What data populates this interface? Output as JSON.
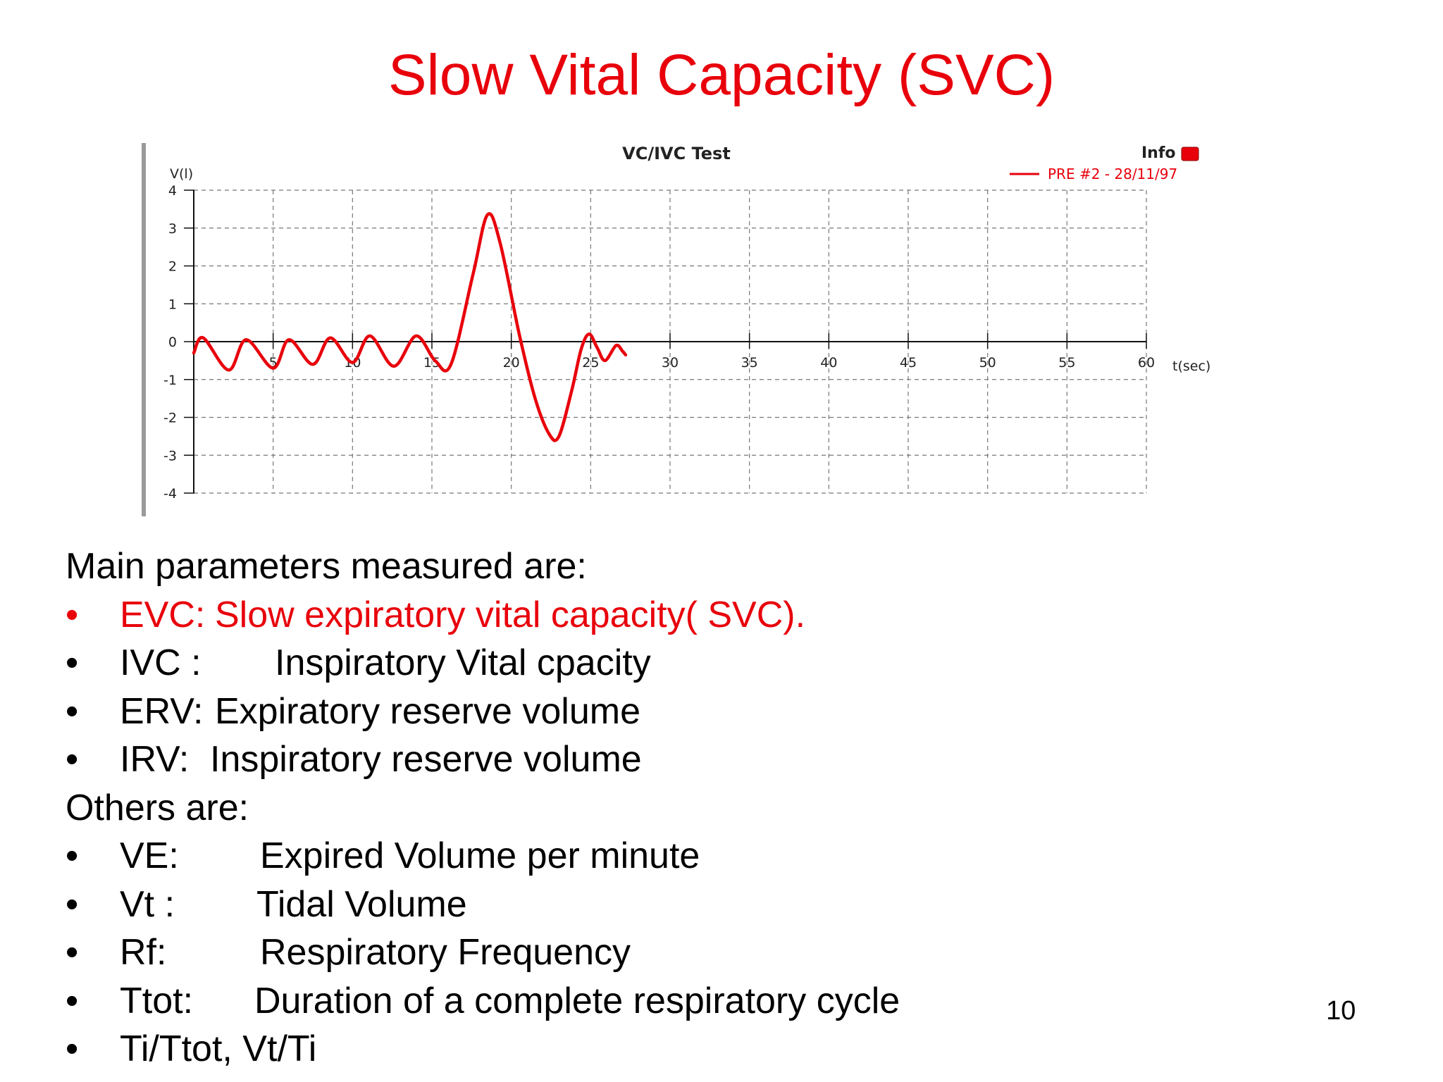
{
  "slide": {
    "title": "Slow Vital Capacity (SVC)",
    "page_number": "10",
    "accent_color": "#e8000b",
    "main_heading": "Main parameters  measured are:",
    "main_items": [
      {
        "term": "EVC:",
        "desc": "Slow expiratory vital capacity( SVC).",
        "highlight": true
      },
      {
        "term": "IVC :",
        "desc": "Inspiratory Vital cpacity",
        "highlight": false
      },
      {
        "term": "ERV:",
        "desc": "Expiratory reserve volume",
        "highlight": false
      },
      {
        "term": "IRV:",
        "desc": "Inspiratory reserve volume",
        "highlight": false
      }
    ],
    "others_heading": "Others are:",
    "other_items": [
      {
        "term": "VE:",
        "desc": "Expired Volume per minute"
      },
      {
        "term": "Vt :",
        "desc": "Tidal Volume"
      },
      {
        "term": "Rf:",
        "desc": "Respiratory Frequency"
      },
      {
        "term": "Ttot:",
        "desc": "Duration of a complete respiratory cycle"
      },
      {
        "term": "Ti/Ttot, Vt/Ti",
        "desc": ""
      }
    ],
    "bullet_char": "•"
  },
  "chart_data": {
    "type": "line",
    "title": "VC/IVC Test",
    "ylabel": "V(l)",
    "xlabel": "t(sec)",
    "info_label": "Info",
    "xlim": [
      0,
      60
    ],
    "ylim": [
      -4,
      4
    ],
    "x_ticks": [
      5,
      10,
      15,
      20,
      25,
      30,
      35,
      40,
      45,
      50,
      55,
      60
    ],
    "y_ticks": [
      4,
      3,
      2,
      1,
      0,
      -1,
      -2,
      -3,
      -4
    ],
    "grid": true,
    "legend_position": "top-right",
    "series": [
      {
        "name": "PRE #2 - 28/11/97",
        "color": "#e8000b",
        "x": [
          0,
          0.6,
          2.2,
          3.3,
          5.0,
          6.0,
          7.5,
          8.6,
          10.0,
          11.1,
          12.6,
          14.0,
          15.2,
          16.2,
          17.6,
          18.5,
          19.3,
          20.5,
          21.5,
          22.4,
          23.0,
          23.8,
          24.4,
          24.9,
          25.4,
          25.9,
          26.6,
          27.0,
          27.2
        ],
        "y": [
          -0.3,
          0.1,
          -0.75,
          0.05,
          -0.7,
          0.05,
          -0.6,
          0.1,
          -0.55,
          0.15,
          -0.65,
          0.15,
          -0.5,
          -0.6,
          1.8,
          3.35,
          2.6,
          0.2,
          -1.5,
          -2.45,
          -2.5,
          -1.3,
          -0.2,
          0.2,
          -0.15,
          -0.5,
          -0.1,
          -0.25,
          -0.35
        ]
      }
    ]
  }
}
